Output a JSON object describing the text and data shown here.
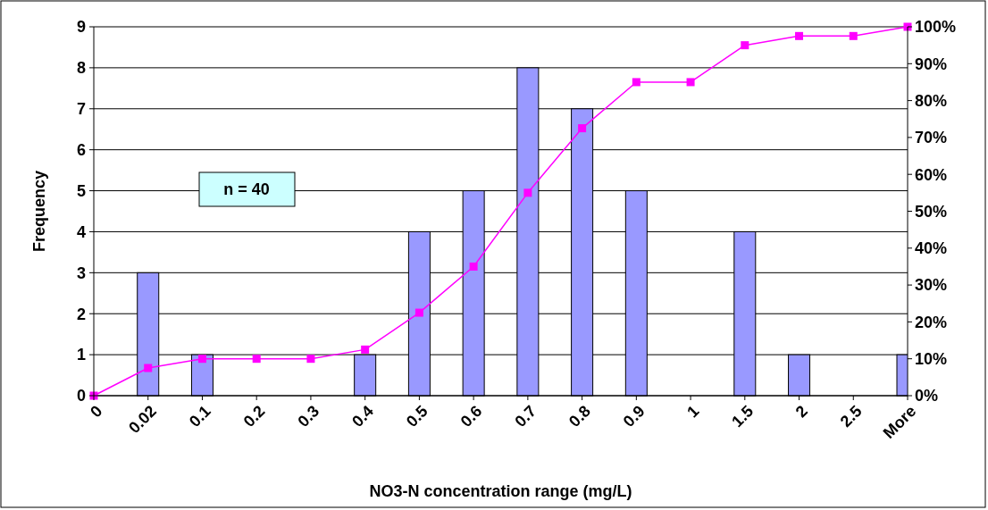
{
  "chart_data": {
    "type": "bar",
    "xlabel": "NO3-N concentration range (mg/L)",
    "ylabel": "Frequency",
    "categories": [
      "0",
      "0.02",
      "0.1",
      "0.2",
      "0.3",
      "0.4",
      "0.5",
      "0.6",
      "0.7",
      "0.8",
      "0.9",
      "1",
      "1.5",
      "2",
      "2.5",
      "More"
    ],
    "series": [
      {
        "color": "#9999ff",
        "values": [
          0,
          3,
          1,
          0,
          0,
          1,
          4,
          5,
          8,
          7,
          5,
          0,
          4,
          1,
          0,
          1
        ]
      },
      {
        "type": "line",
        "axis": "y2",
        "color": "#ff00ff",
        "values": [
          0,
          7.5,
          10,
          10,
          10,
          12.5,
          22.5,
          35,
          55,
          72.5,
          85,
          85,
          95,
          97.5,
          97.5,
          100
        ]
      }
    ],
    "ylim": [
      0,
      9
    ],
    "yticks": [
      0,
      1,
      2,
      3,
      4,
      5,
      6,
      7,
      8,
      9
    ],
    "y2lim": [
      0,
      100
    ],
    "y2ticks": [
      {
        "value": 0,
        "label": "0%"
      },
      {
        "value": 10,
        "label": "10%"
      },
      {
        "value": 20,
        "label": "20%"
      },
      {
        "value": 30,
        "label": "30%"
      },
      {
        "value": 40,
        "label": "40%"
      },
      {
        "value": 50,
        "label": "50%"
      },
      {
        "value": 60,
        "label": "60%"
      },
      {
        "value": 70,
        "label": "70%"
      },
      {
        "value": 80,
        "label": "80%"
      },
      {
        "value": 90,
        "label": "90%"
      },
      {
        "value": 100,
        "label": "100%"
      }
    ],
    "grid": "y",
    "marker": "square",
    "line_style": "solid",
    "annotations": [
      "n = 40"
    ]
  }
}
